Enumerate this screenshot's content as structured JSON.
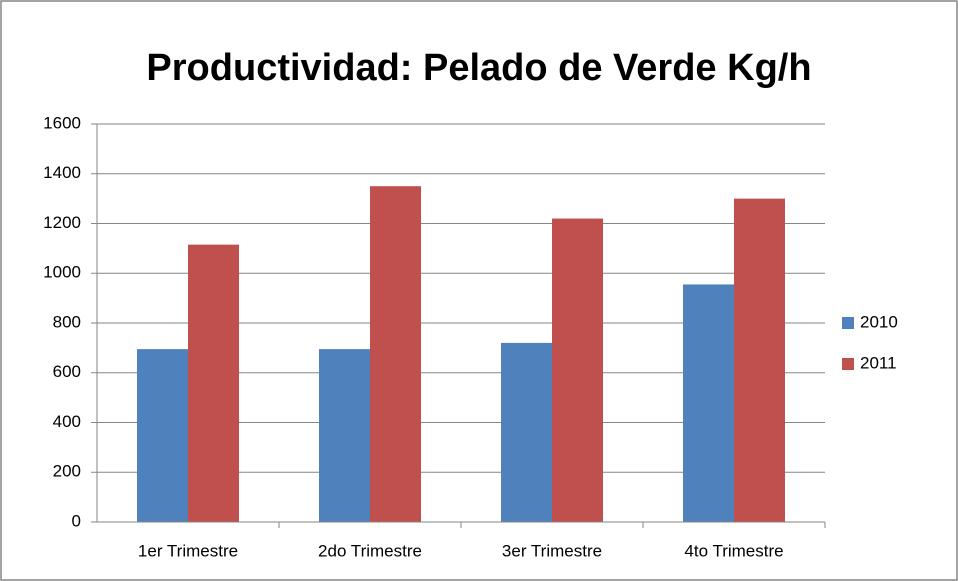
{
  "chart_data": {
    "type": "bar",
    "title": "Productividad: Pelado de Verde Kg/h",
    "categories": [
      "1er Trimestre",
      "2do Trimestre",
      "3er Trimestre",
      "4to Trimestre"
    ],
    "series": [
      {
        "name": "2010",
        "color": "#4f81bd",
        "values": [
          695,
          695,
          720,
          955
        ]
      },
      {
        "name": "2011",
        "color": "#c0504d",
        "values": [
          1115,
          1350,
          1220,
          1300
        ]
      }
    ],
    "ylim": [
      0,
      1600
    ],
    "yticks": [
      0,
      200,
      400,
      600,
      800,
      1000,
      1200,
      1400,
      1600
    ],
    "grid": true,
    "legend": "right"
  }
}
